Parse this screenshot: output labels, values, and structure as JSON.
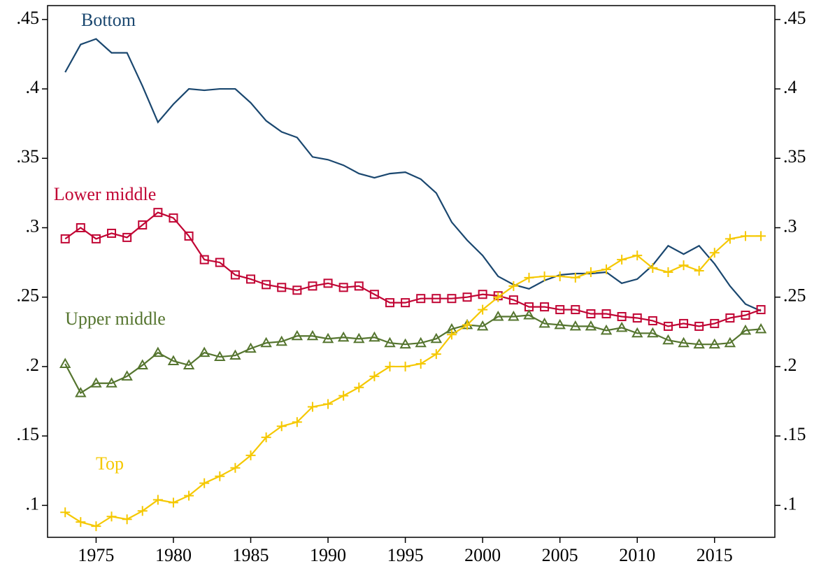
{
  "chart_data": {
    "type": "line",
    "x": [
      1973,
      1974,
      1975,
      1976,
      1977,
      1978,
      1979,
      1980,
      1981,
      1982,
      1983,
      1984,
      1985,
      1986,
      1987,
      1988,
      1989,
      1990,
      1991,
      1992,
      1993,
      1994,
      1995,
      1996,
      1997,
      1998,
      1999,
      2000,
      2001,
      2002,
      2003,
      2004,
      2005,
      2006,
      2007,
      2008,
      2009,
      2010,
      2011,
      2012,
      2013,
      2014,
      2015,
      2016,
      2017,
      2018
    ],
    "series": [
      {
        "name": "Bottom",
        "color": "#1a476f",
        "marker": "none",
        "values": [
          0.412,
          0.432,
          0.436,
          0.426,
          0.426,
          0.402,
          0.376,
          0.389,
          0.4,
          0.399,
          0.4,
          0.4,
          0.39,
          0.377,
          0.369,
          0.365,
          0.351,
          0.349,
          0.345,
          0.339,
          0.336,
          0.339,
          0.34,
          0.335,
          0.325,
          0.304,
          0.291,
          0.28,
          0.265,
          0.259,
          0.256,
          0.262,
          0.266,
          0.267,
          0.267,
          0.268,
          0.26,
          0.263,
          0.273,
          0.287,
          0.281,
          0.287,
          0.274,
          0.258,
          0.245,
          0.24
        ]
      },
      {
        "name": "Lower middle",
        "color": "#c10534",
        "marker": "square",
        "values": [
          0.292,
          0.3,
          0.292,
          0.296,
          0.293,
          0.302,
          0.311,
          0.307,
          0.294,
          0.277,
          0.275,
          0.266,
          0.263,
          0.259,
          0.257,
          0.255,
          0.258,
          0.26,
          0.257,
          0.258,
          0.252,
          0.246,
          0.246,
          0.249,
          0.249,
          0.249,
          0.25,
          0.252,
          0.251,
          0.248,
          0.243,
          0.243,
          0.241,
          0.241,
          0.238,
          0.238,
          0.236,
          0.235,
          0.233,
          0.229,
          0.231,
          0.229,
          0.231,
          0.235,
          0.237,
          0.241
        ]
      },
      {
        "name": "Upper middle",
        "color": "#55752f",
        "marker": "triangle",
        "values": [
          0.202,
          0.181,
          0.188,
          0.188,
          0.193,
          0.201,
          0.21,
          0.204,
          0.201,
          0.21,
          0.207,
          0.208,
          0.213,
          0.217,
          0.218,
          0.222,
          0.222,
          0.22,
          0.221,
          0.22,
          0.221,
          0.217,
          0.216,
          0.217,
          0.22,
          0.227,
          0.23,
          0.229,
          0.236,
          0.236,
          0.237,
          0.231,
          0.23,
          0.229,
          0.229,
          0.226,
          0.228,
          0.224,
          0.224,
          0.219,
          0.217,
          0.216,
          0.216,
          0.217,
          0.226,
          0.227
        ]
      },
      {
        "name": "Top",
        "color": "#f5c800",
        "marker": "plus",
        "values": [
          0.095,
          0.088,
          0.085,
          0.092,
          0.09,
          0.096,
          0.104,
          0.102,
          0.107,
          0.116,
          0.121,
          0.127,
          0.136,
          0.149,
          0.157,
          0.16,
          0.171,
          0.173,
          0.179,
          0.185,
          0.193,
          0.2,
          0.2,
          0.202,
          0.209,
          0.223,
          0.23,
          0.241,
          0.25,
          0.258,
          0.264,
          0.265,
          0.265,
          0.264,
          0.268,
          0.27,
          0.277,
          0.28,
          0.271,
          0.268,
          0.273,
          0.269,
          0.282,
          0.292,
          0.294,
          0.294
        ]
      }
    ],
    "xlim": [
      1971.86,
      2018.9
    ],
    "xticks": [
      1975,
      1980,
      1985,
      1990,
      1995,
      2000,
      2005,
      2010,
      2015
    ],
    "ylim": [
      0.077,
      0.46
    ],
    "yticks": [
      {
        "value": 0.1,
        "label": ".1"
      },
      {
        "value": 0.15,
        "label": ".15"
      },
      {
        "value": 0.2,
        "label": ".2"
      },
      {
        "value": 0.25,
        "label": ".25"
      },
      {
        "value": 0.3,
        "label": ".3"
      },
      {
        "value": 0.35,
        "label": ".35"
      },
      {
        "value": 0.4,
        "label": ".4"
      },
      {
        "value": 0.45,
        "label": ".45"
      }
    ],
    "y2lim": [
      0.077,
      0.46
    ],
    "y2ticks": [
      {
        "value": 0.1,
        "label": ".1"
      },
      {
        "value": 0.15,
        "label": ".15"
      },
      {
        "value": 0.2,
        "label": ".2"
      },
      {
        "value": 0.25,
        "label": ".25"
      },
      {
        "value": 0.3,
        "label": ".3"
      },
      {
        "value": 0.35,
        "label": ".35"
      },
      {
        "value": 0.4,
        "label": ".4"
      },
      {
        "value": 0.45,
        "label": ".45"
      }
    ],
    "grid": false
  }
}
